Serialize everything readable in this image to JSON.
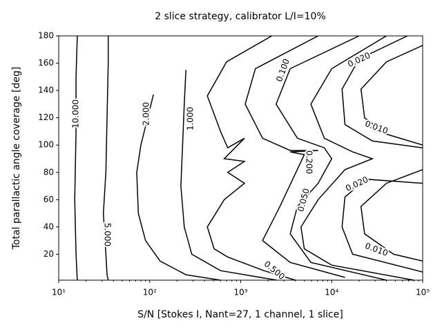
{
  "chart_data": {
    "type": "contour",
    "title": "2 slice strategy, calibrator L/I=10%",
    "x_label": "S/N [Stokes I, Nant=27, 1 channel, 1 slice]",
    "y_label": "Total parallactic angle coverage [deg]",
    "x_log": true,
    "xlim": [
      10,
      100000
    ],
    "xticks": [
      {
        "value": 10,
        "label": "10¹"
      },
      {
        "value": 100,
        "label": "10²"
      },
      {
        "value": 1000,
        "label": "10³"
      },
      {
        "value": 10000,
        "label": "10⁴"
      },
      {
        "value": 100000,
        "label": "10⁵"
      }
    ],
    "ylim": [
      1,
      180
    ],
    "yticks": [
      20,
      40,
      60,
      80,
      100,
      120,
      140,
      160,
      180
    ],
    "color": "#000000",
    "contours": [
      {
        "label": "10.000",
        "x": [
          16,
          15.5,
          15.5,
          15,
          15.5,
          16
        ],
        "y": [
          180,
          150,
          110,
          60,
          20,
          1
        ]
      },
      {
        "label": "5.000",
        "x": [
          35,
          35,
          34,
          33,
          31,
          33,
          34,
          35
        ],
        "y": [
          180,
          160,
          120,
          80,
          50,
          20,
          5,
          1
        ]
      },
      {
        "label": "2.000",
        "x": [
          110,
          95,
          80,
          72,
          75,
          90,
          130,
          250,
          600
        ],
        "y": [
          137,
          120,
          100,
          80,
          50,
          30,
          15,
          5,
          1
        ]
      },
      {
        "label": "1.000",
        "x": [
          250,
          240,
          230,
          220,
          240,
          290,
          600,
          2500
        ],
        "y": [
          155,
          130,
          100,
          70,
          40,
          20,
          8,
          1
        ]
      },
      {
        "label": "0.500",
        "x": [
          2200,
          700,
          430,
          600,
          720,
          1100,
          660,
          1100,
          720,
          1100,
          660,
          430,
          510,
          720,
          1800,
          4000
        ],
        "y": [
          180,
          161,
          136,
          110,
          98,
          105,
          90,
          88,
          80,
          72,
          60,
          40,
          24,
          18,
          8,
          1
        ]
      },
      {
        "label": "0.200",
        "x": [
          7100,
          1450,
          1120,
          1740,
          3500,
          7100,
          3500,
          5000,
          2700,
          1740,
          3500,
          14000
        ],
        "y": [
          180,
          156,
          130,
          105,
          96,
          96,
          95,
          93,
          55,
          30,
          14,
          3
        ]
      },
      {
        "label": "0.100",
        "x": [
          20000,
          3500,
          2450,
          4200,
          8300,
          10000,
          7100,
          4200,
          3500,
          5900,
          40000
        ],
        "y": [
          180,
          156,
          130,
          105,
          98,
          90,
          72,
          55,
          35,
          14,
          1
        ]
      },
      {
        "label": "0.050",
        "x": [
          40000,
          10000,
          5900,
          8300,
          17000,
          28000,
          14000,
          7100,
          4600,
          5000,
          10000,
          80000
        ],
        "y": [
          180,
          156,
          130,
          105,
          95,
          90,
          82,
          60,
          40,
          24,
          12,
          1
        ]
      },
      {
        "label": "0.020",
        "x": [
          68000,
          20000,
          13000,
          14000,
          28000,
          100000,
          null,
          100000,
          24000,
          14000,
          13000,
          17000,
          100000
        ],
        "y": [
          180,
          163,
          141,
          115,
          103,
          98,
          null,
          72,
          75,
          62,
          40,
          20,
          7
        ]
      },
      {
        "label": "0.010",
        "x": [
          100000,
          40000,
          21000,
          23000,
          40000,
          100000,
          null,
          100000,
          40000,
          21000,
          23000,
          48000,
          100000
        ],
        "y": [
          173,
          161,
          141,
          120,
          108,
          100,
          null,
          82,
          72,
          55,
          35,
          20,
          15
        ]
      }
    ]
  }
}
